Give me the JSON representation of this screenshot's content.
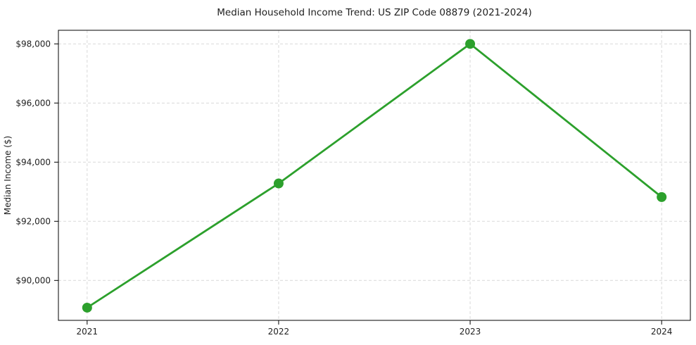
{
  "chart_data": {
    "type": "line",
    "title": "Median Household Income Trend: US ZIP Code 08879 (2021-2024)",
    "ylabel": "Median Income ($)",
    "xlabel": "",
    "x": [
      2021,
      2022,
      2023,
      2024
    ],
    "values": [
      89080,
      93280,
      98000,
      92820
    ],
    "xticks": [
      {
        "value": 2021,
        "label": "2021"
      },
      {
        "value": 2022,
        "label": "2022"
      },
      {
        "value": 2023,
        "label": "2023"
      },
      {
        "value": 2024,
        "label": "2024"
      }
    ],
    "yticks": [
      {
        "value": 90000,
        "label": "$90,000"
      },
      {
        "value": 92000,
        "label": "$92,000"
      },
      {
        "value": 94000,
        "label": "$94,000"
      },
      {
        "value": 96000,
        "label": "$96,000"
      },
      {
        "value": 98000,
        "label": "$98,000"
      }
    ],
    "xlim": [
      2020.85,
      2024.15
    ],
    "ylim": [
      88650,
      98460
    ],
    "grid": true,
    "grid_style": "dashed",
    "legend": "none",
    "colors": {
      "line": "#2ca02c",
      "marker": "#2ca02c",
      "grid": "#d9d9d9",
      "spine": "#000000",
      "text": "#1f1f1f",
      "background": "#ffffff"
    }
  }
}
